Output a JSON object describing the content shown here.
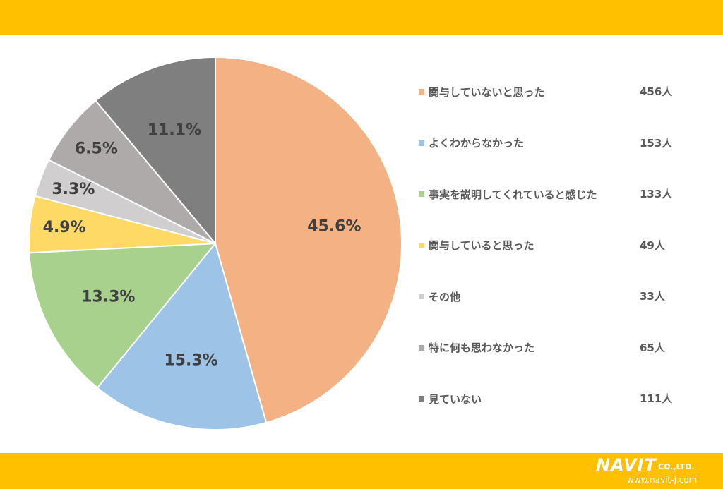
{
  "colors": {
    "band": "#FFC000",
    "text": "#595959",
    "label_text": "#404040"
  },
  "chart_data": {
    "type": "pie",
    "start_angle_deg": 0,
    "direction": "clockwise",
    "slices": [
      {
        "label": "関与していないと思った",
        "count": "456人",
        "percent": 45.6,
        "percent_label": "45.6%",
        "color": "#F4B183"
      },
      {
        "label": "よくわからなかった",
        "count": "153人",
        "percent": 15.3,
        "percent_label": "15.3%",
        "color": "#9DC3E6"
      },
      {
        "label": "事実を説明してくれていると感じた",
        "count": "133人",
        "percent": 13.3,
        "percent_label": "13.3%",
        "color": "#A9D18E"
      },
      {
        "label": "関与していると思った",
        "count": "49人",
        "percent": 4.9,
        "percent_label": "4.9%",
        "color": "#FFD966"
      },
      {
        "label": "その他",
        "count": "33人",
        "percent": 3.3,
        "percent_label": "3.3%",
        "color": "#D0CECE"
      },
      {
        "label": "特に何も思わなかった",
        "count": "65人",
        "percent": 6.5,
        "percent_label": "6.5%",
        "color": "#AEAAAA"
      },
      {
        "label": "見ていない",
        "count": "111人",
        "percent": 11.1,
        "percent_label": "11.1%",
        "color": "#7F7F7F"
      }
    ],
    "legend_position": "right"
  },
  "logo": {
    "name": "NAVIT",
    "suffix": "CO.,LTD.",
    "url": "www.navit-j.com"
  }
}
